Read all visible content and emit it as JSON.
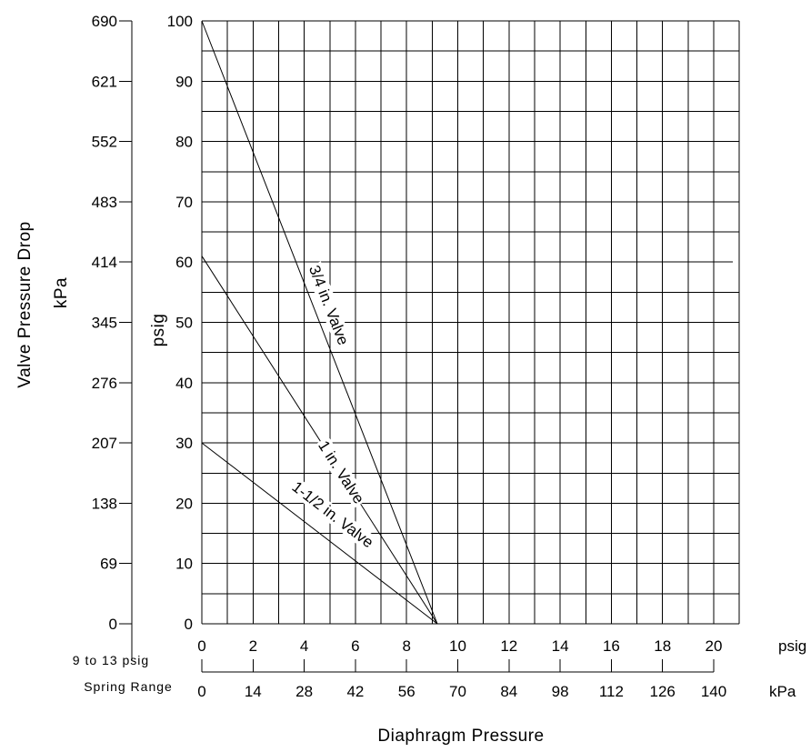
{
  "chart_data": {
    "type": "line",
    "title": "",
    "x_axis": {
      "label": "Diaphragm Pressure",
      "primary": {
        "unit": "psig",
        "range": [
          0,
          21
        ],
        "ticks": [
          0,
          2,
          4,
          6,
          8,
          10,
          12,
          14,
          16,
          18,
          20
        ]
      },
      "secondary": {
        "unit": "kPa",
        "ticks": [
          0,
          14,
          28,
          42,
          56,
          70,
          84,
          98,
          112,
          126,
          140
        ]
      },
      "note": "9 to 13 psig\nSpring Range"
    },
    "y_axis": {
      "primary": {
        "label": "psig",
        "range": [
          0,
          100
        ],
        "ticks": [
          0,
          10,
          20,
          30,
          40,
          50,
          60,
          70,
          80,
          90,
          100
        ]
      },
      "secondary": {
        "label": "Valve Pressure Drop\nkPa",
        "ticks": [
          0,
          69,
          138,
          207,
          276,
          345,
          414,
          483,
          552,
          621,
          690
        ]
      }
    },
    "grid": true,
    "series": [
      {
        "name": "3/4 in. Valve",
        "points": [
          [
            0,
            100
          ],
          [
            9.2,
            0
          ]
        ]
      },
      {
        "name": "1 in. Valve",
        "points": [
          [
            0,
            61
          ],
          [
            9.2,
            0
          ]
        ]
      },
      {
        "name": "1-1/2 in. Valve",
        "points": [
          [
            0,
            30
          ],
          [
            9.2,
            0
          ]
        ]
      }
    ]
  }
}
